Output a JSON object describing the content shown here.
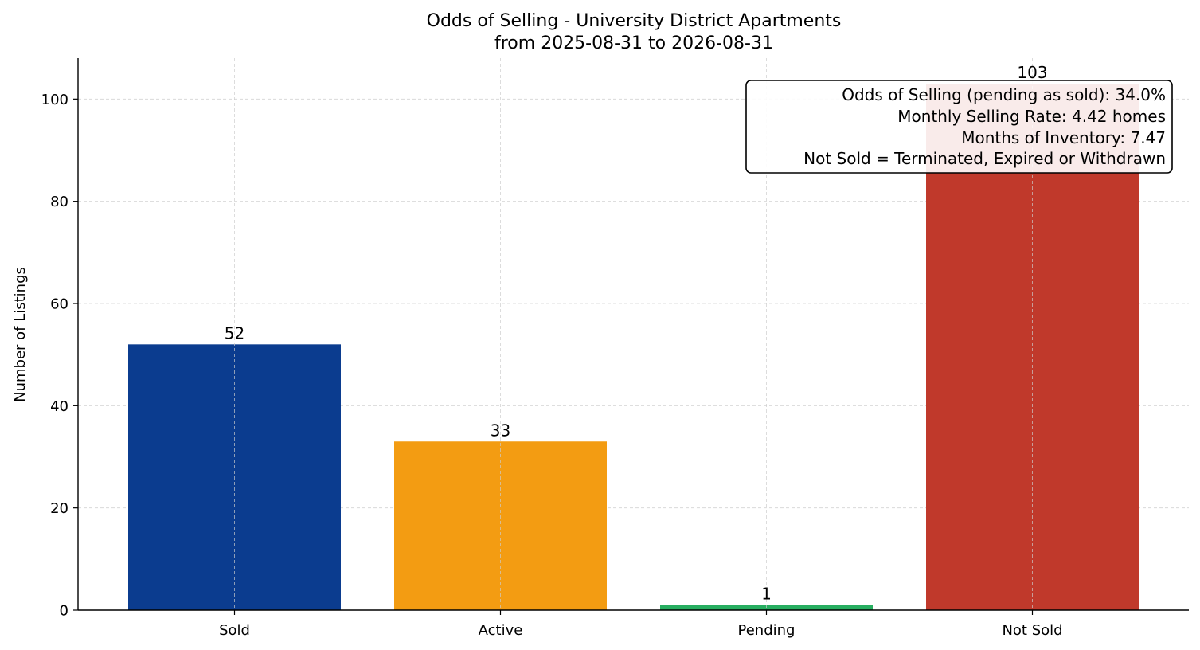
{
  "chart_data": {
    "type": "bar",
    "title": "Odds of Selling - University District Apartments",
    "subtitle": "from 2025-08-31 to 2026-08-31",
    "xlabel": "",
    "ylabel": "Number of Listings",
    "categories": [
      "Sold",
      "Active",
      "Pending",
      "Not Sold"
    ],
    "values": [
      52,
      33,
      1,
      103
    ],
    "colors": [
      "#0b3c8f",
      "#f39c12",
      "#27ae60",
      "#c0392b"
    ],
    "ylim": [
      0,
      108
    ],
    "yticks": [
      0,
      20,
      40,
      60,
      80,
      100
    ],
    "grid": true,
    "annotation": {
      "position": "top-right",
      "lines": [
        "Odds of Selling (pending as sold): 34.0%",
        "Monthly Selling Rate: 4.42 homes",
        "Months of Inventory: 7.47",
        "Not Sold = Terminated, Expired or Withdrawn"
      ]
    }
  }
}
